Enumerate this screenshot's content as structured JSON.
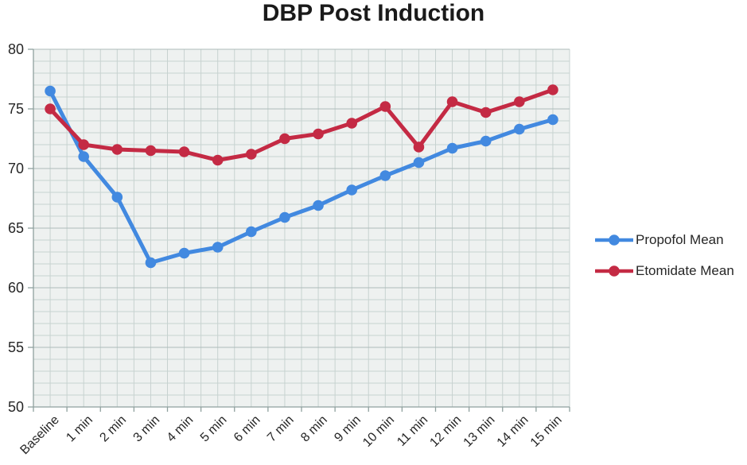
{
  "chart_data": {
    "type": "line",
    "title": "DBP Post Induction",
    "xlabel": "",
    "ylabel": "",
    "categories": [
      "Baseline",
      "1 min",
      "2 min",
      "3 min",
      "4 min",
      "5 min",
      "6 min",
      "7 min",
      "8 min",
      "9 min",
      "10 min",
      "11 min",
      "12 min",
      "13 min",
      "14 min",
      "15 min"
    ],
    "series": [
      {
        "name": "Propofol Mean",
        "color": "#4289E0",
        "values": [
          76.5,
          71.0,
          67.6,
          62.1,
          62.9,
          63.4,
          64.7,
          65.9,
          66.9,
          68.2,
          69.4,
          70.5,
          71.7,
          72.3,
          73.3,
          74.1
        ]
      },
      {
        "name": "Etomidate Mean",
        "color": "#C42A44",
        "values": [
          75.0,
          72.0,
          71.6,
          71.5,
          71.4,
          70.7,
          71.2,
          72.5,
          72.9,
          73.8,
          75.2,
          71.8,
          75.6,
          74.7,
          75.6,
          76.6
        ]
      }
    ],
    "ylim": [
      50,
      80
    ],
    "ytick_step": 5,
    "ytick_minor_step": 1,
    "grid": true,
    "legend_position": "right",
    "colors": {
      "plot_bg": "#EEF1F0",
      "grid_minor": "#C7D2D0",
      "grid_major": "#ADBCBA",
      "axis": "#8FA09E",
      "text": "#262626"
    }
  }
}
